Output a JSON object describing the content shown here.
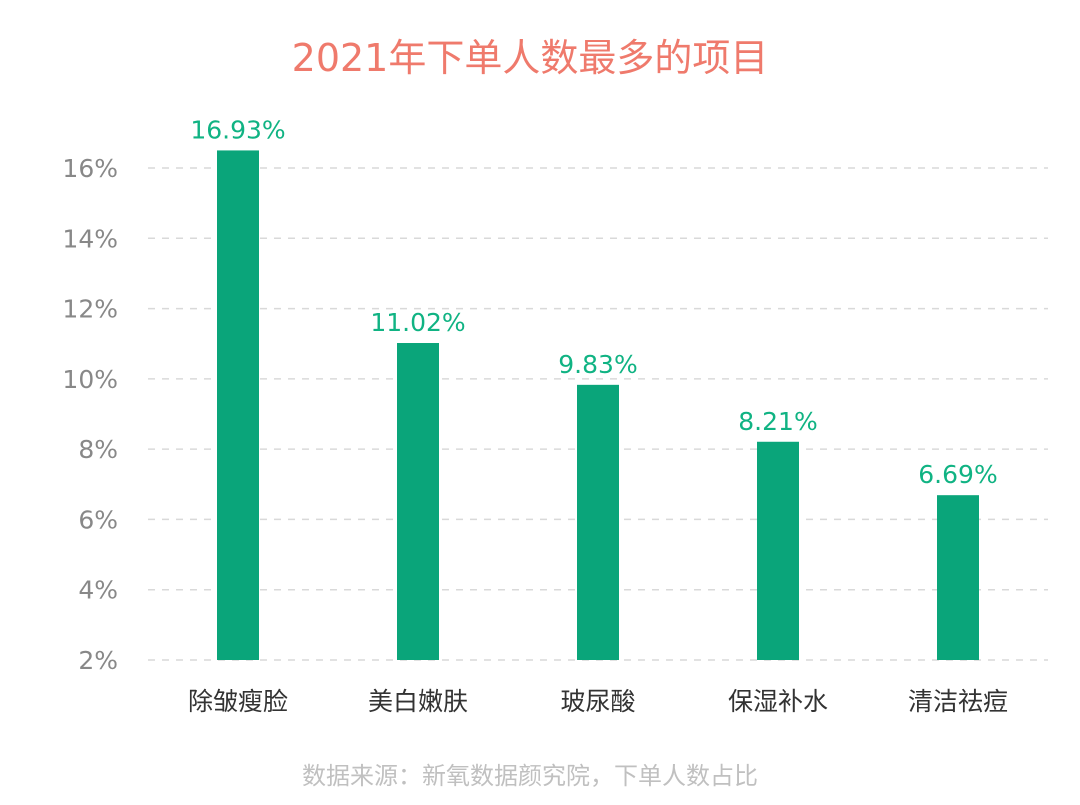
{
  "chart_data": {
    "type": "bar",
    "title": "2021年下单人数最多的项目",
    "categories": [
      "除皱瘦脸",
      "美白嫩肤",
      "玻尿酸",
      "保湿补水",
      "清洁祛痘"
    ],
    "values": [
      16.93,
      11.02,
      9.83,
      8.21,
      6.69
    ],
    "value_labels": [
      "16.93%",
      "11.02%",
      "9.83%",
      "8.21%",
      "6.69%"
    ],
    "y_ticks": [
      2,
      4,
      6,
      8,
      10,
      12,
      14,
      16
    ],
    "y_tick_labels": [
      "2%",
      "4%",
      "6%",
      "8%",
      "10%",
      "12%",
      "14%",
      "16%"
    ],
    "ylim": [
      2,
      16
    ],
    "grid": true,
    "source": "数据来源：新氧数据颜究院，下单人数占比",
    "colors": {
      "bar": "#0aa57a",
      "value_label": "#10b383",
      "title": "#ef7a6c"
    }
  }
}
